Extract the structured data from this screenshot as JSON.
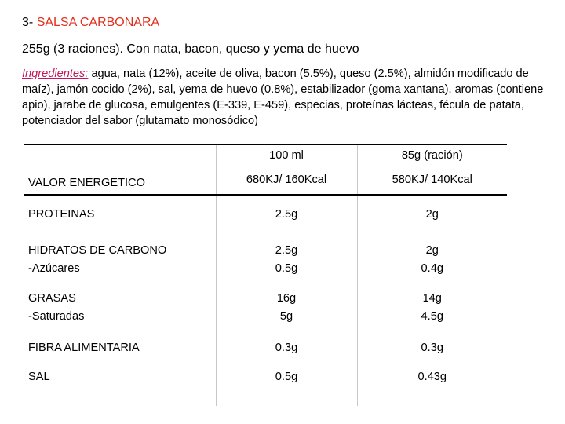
{
  "heading": {
    "number": "3-",
    "name": "SALSA CARBONARA"
  },
  "subtitle": "255g (3 raciones). Con nata, bacon, queso y yema de huevo",
  "ingredients": {
    "label": "Ingredientes:",
    "text": " agua, nata (12%), aceite de oliva, bacon (5.5%), queso (2.5%), almidón modificado de maíz), jamón cocido (2%), sal, yema de huevo (0.8%), estabilizador  (goma xantana), aromas (contiene apio), jarabe de glucosa, emulgentes (E-339, E-459), especias, proteínas lácteas, fécula de patata, potenciador del sabor (glutamato monosódico)"
  },
  "table": {
    "columns": [
      "",
      "100 ml",
      "85g (ración)"
    ],
    "energy": {
      "label": "VALOR ENERGETICO",
      "per100": "680KJ/ 160Kcal",
      "serving": "580KJ/ 140Kcal"
    },
    "rows": [
      {
        "label": "PROTEINAS",
        "per100": "2.5g",
        "serving": "2g"
      },
      {
        "label": "HIDRATOS DE CARBONO",
        "sublabel": "-Azúcares",
        "per100": "2.5g",
        "per100_sub": "0.5g",
        "serving": "2g",
        "serving_sub": "0.4g"
      },
      {
        "label": "GRASAS",
        "sublabel": "-Saturadas",
        "per100": "16g",
        "per100_sub": "5g",
        "serving": "14g",
        "serving_sub": "4.5g"
      },
      {
        "label": "FIBRA ALIMENTARIA",
        "per100": "0.3g",
        "serving": "0.3g"
      },
      {
        "label": "SAL",
        "per100": "0.5g",
        "serving": "0.43g"
      }
    ]
  }
}
